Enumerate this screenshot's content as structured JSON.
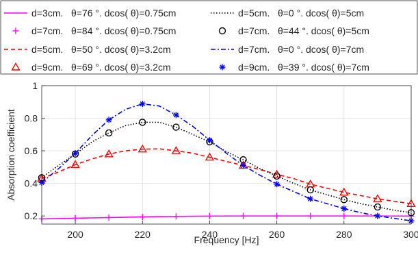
{
  "chart_data": {
    "type": "line",
    "xlabel": "Frequency [Hz]",
    "ylabel": "Absorption coefficient",
    "xlim": [
      190,
      300
    ],
    "ylim": [
      0.15,
      1.0
    ],
    "xticks": [
      200,
      220,
      240,
      260,
      280,
      300
    ],
    "yticks": [
      0.2,
      0.4,
      0.6,
      0.8,
      1.0
    ],
    "ytick_labels": [
      "0.2",
      "0.4",
      "0.6",
      "0.8",
      "1"
    ],
    "grid": true,
    "legend_position": "top, outside plot, 3 columns",
    "series": [
      {
        "name": "d=3cm.   θ=76 °. dcos( θ)=0.75cm",
        "color": "#ff00ff",
        "style": "solid",
        "marker": "none",
        "x": [
          190,
          200,
          210,
          220,
          230,
          240,
          250,
          260,
          270,
          280,
          290,
          300
        ],
        "y": [
          0.182,
          0.186,
          0.19,
          0.194,
          0.197,
          0.199,
          0.2,
          0.2,
          0.2,
          0.2,
          0.2,
          0.199
        ]
      },
      {
        "name": "d=7cm.   θ=84 °. dcos( θ)=0.75cm",
        "color": "#ff00ff",
        "style": "none",
        "marker": "plus",
        "x": [
          190,
          200,
          210,
          220,
          230,
          240,
          250,
          260,
          270,
          280,
          290,
          300
        ],
        "y": [
          0.182,
          0.186,
          0.19,
          0.194,
          0.197,
          0.199,
          0.2,
          0.2,
          0.2,
          0.2,
          0.2,
          0.199
        ]
      },
      {
        "name": "d=5cm.   θ=50 °. dcos( θ)=3.2cm",
        "color": "#ff0000",
        "style": "dashed",
        "marker": "none",
        "x": [
          190,
          195,
          200,
          205,
          210,
          215,
          220,
          225,
          230,
          235,
          240,
          245,
          250,
          255,
          260,
          265,
          270,
          275,
          280,
          285,
          290,
          295,
          300
        ],
        "y": [
          0.43,
          0.47,
          0.515,
          0.55,
          0.58,
          0.6,
          0.61,
          0.612,
          0.6,
          0.585,
          0.56,
          0.535,
          0.51,
          0.485,
          0.455,
          0.43,
          0.395,
          0.37,
          0.345,
          0.325,
          0.305,
          0.29,
          0.275
        ]
      },
      {
        "name": "d=9cm.   θ=69 °. dcos( θ)=3.2cm",
        "color": "#ff0000",
        "style": "none",
        "marker": "triangle",
        "x": [
          190,
          200,
          210,
          220,
          230,
          240,
          250,
          260,
          270,
          280,
          290,
          300
        ],
        "y": [
          0.43,
          0.515,
          0.58,
          0.61,
          0.6,
          0.56,
          0.51,
          0.455,
          0.395,
          0.345,
          0.305,
          0.275
        ]
      },
      {
        "name": "d=5cm.   θ=0 °. dcos( θ)=5cm",
        "color": "#000000",
        "style": "dotted",
        "marker": "none",
        "x": [
          190,
          195,
          200,
          205,
          210,
          215,
          220,
          225,
          230,
          235,
          240,
          245,
          250,
          255,
          260,
          265,
          270,
          275,
          280,
          285,
          290,
          295,
          300
        ],
        "y": [
          0.435,
          0.51,
          0.58,
          0.655,
          0.71,
          0.755,
          0.775,
          0.775,
          0.745,
          0.7,
          0.655,
          0.595,
          0.545,
          0.49,
          0.445,
          0.4,
          0.36,
          0.33,
          0.3,
          0.275,
          0.255,
          0.235,
          0.22
        ]
      },
      {
        "name": "d=7cm.   θ=44 °. dcos( θ)=5cm",
        "color": "#000000",
        "style": "none",
        "marker": "circle",
        "x": [
          190,
          200,
          210,
          220,
          230,
          240,
          250,
          260,
          270,
          280,
          290,
          300
        ],
        "y": [
          0.435,
          0.58,
          0.71,
          0.775,
          0.745,
          0.655,
          0.545,
          0.445,
          0.36,
          0.3,
          0.255,
          0.22
        ]
      },
      {
        "name": "d=7cm.   θ=0 °. dcos( θ)=7cm",
        "color": "#0000ff",
        "style": "dashdot",
        "marker": "none",
        "x": [
          190,
          195,
          200,
          205,
          210,
          215,
          220,
          225,
          230,
          235,
          240,
          245,
          250,
          255,
          260,
          265,
          270,
          275,
          280,
          285,
          290,
          295,
          300
        ],
        "y": [
          0.405,
          0.49,
          0.585,
          0.695,
          0.79,
          0.855,
          0.888,
          0.875,
          0.82,
          0.75,
          0.665,
          0.585,
          0.51,
          0.45,
          0.395,
          0.35,
          0.305,
          0.275,
          0.245,
          0.22,
          0.2,
          0.185,
          0.17
        ]
      },
      {
        "name": "d=9cm.   θ=39 °. dcos( θ)=7cm",
        "color": "#0000ff",
        "style": "none",
        "marker": "asterisk",
        "x": [
          190,
          200,
          210,
          220,
          230,
          240,
          250,
          260,
          270,
          280,
          290,
          300
        ],
        "y": [
          0.405,
          0.585,
          0.79,
          0.888,
          0.82,
          0.665,
          0.51,
          0.395,
          0.305,
          0.245,
          0.2,
          0.17
        ]
      }
    ]
  }
}
